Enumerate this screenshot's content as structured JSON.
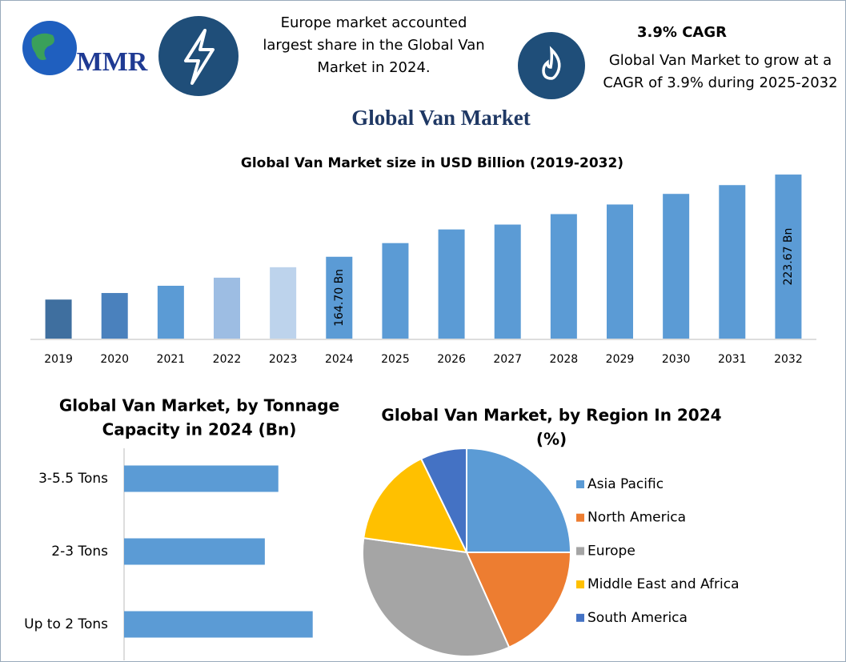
{
  "header": {
    "logo": "MMR",
    "left_text": [
      "Europe market accounted",
      "largest share in the Global Van",
      "Market in 2024."
    ],
    "cagr_title": "3.9% CAGR",
    "cagr_text": [
      "Global Van Market to grow at a",
      "CAGR of 3.9% during 2025-2032"
    ]
  },
  "title": "Global Van Market",
  "chart_data": [
    {
      "type": "bar",
      "title": "Global Van Market size in USD Billion (2019-2032)",
      "categories": [
        "2019",
        "2020",
        "2021",
        "2022",
        "2023",
        "2024",
        "2025",
        "2026",
        "2027",
        "2028",
        "2029",
        "2030",
        "2031",
        "2032"
      ],
      "values": [
        134.0,
        138.7,
        143.9,
        149.7,
        157.2,
        164.7,
        174.5,
        184.3,
        187.8,
        195.3,
        202.2,
        209.8,
        216.1,
        223.67
      ],
      "value_labels": [
        null,
        null,
        null,
        null,
        null,
        "164.70 Bn",
        null,
        null,
        null,
        null,
        null,
        null,
        null,
        "223.67 Bn"
      ],
      "colors": [
        "#3f6f9f",
        "#4a81bd",
        "#5b9bd5",
        "#9dbde3",
        "#bdd3ec",
        "#5b9bd5",
        "#5b9bd5",
        "#5b9bd5",
        "#5b9bd5",
        "#5b9bd5",
        "#5b9bd5",
        "#5b9bd5",
        "#5b9bd5",
        "#5b9bd5"
      ],
      "ylim": [
        106,
        226
      ]
    },
    {
      "type": "hbar",
      "title": [
        "Global Van Market, by Tonnage",
        "Capacity in 2024 (Bn)"
      ],
      "categories": [
        "3-5.5 Tons",
        "2-3 Tons",
        "Up to 2 Tons"
      ],
      "values": [
        52.5,
        47.9,
        64.2
      ],
      "color": "#5b9bd5",
      "xlim": [
        0,
        70
      ]
    },
    {
      "type": "pie",
      "title": [
        "Global Van Market, by Region In 2024",
        "(%)"
      ],
      "categories": [
        "Asia Pacific",
        "North America",
        "Europe",
        "Middle East and Africa",
        "South America"
      ],
      "values": [
        25,
        18.3,
        33.9,
        15.6,
        7.2
      ],
      "colors": [
        "#5b9bd5",
        "#ed7d31",
        "#a5a5a5",
        "#ffc000",
        "#4472c4"
      ],
      "legend": "right"
    }
  ]
}
